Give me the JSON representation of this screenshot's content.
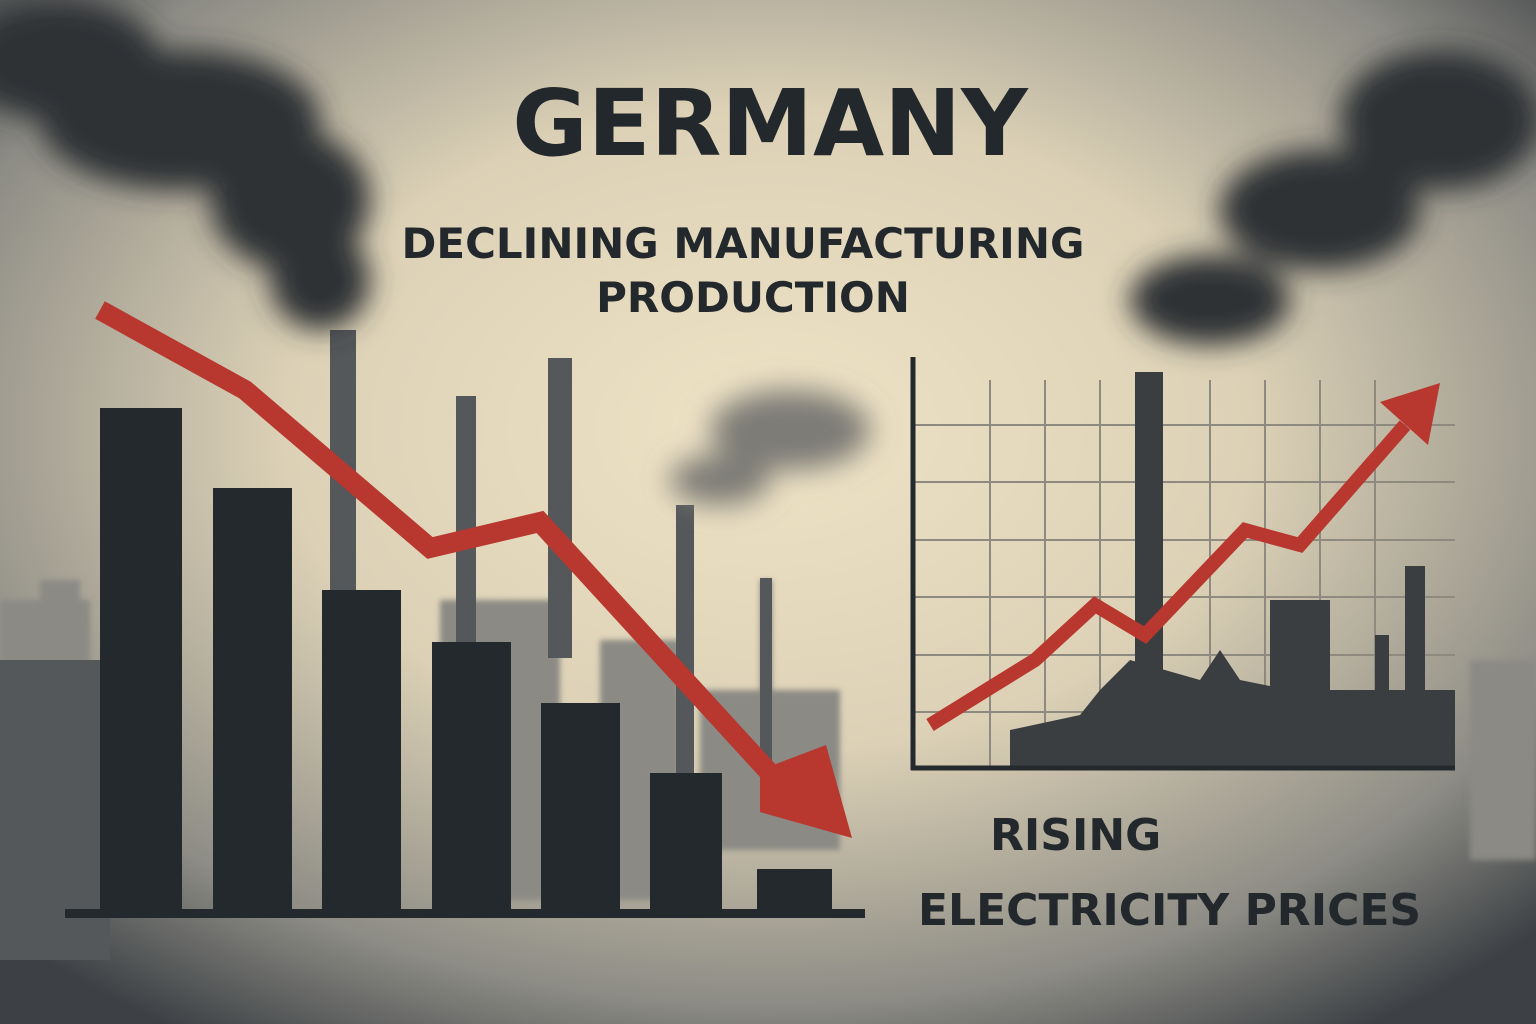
{
  "title": "GERMANY",
  "subtitle": {
    "lines": [
      "DECLINING MANUFACTURING",
      "PRODUCTION"
    ]
  },
  "caption": {
    "lines": [
      "RISING",
      "ELECTRICITY PRICES"
    ]
  }
}
